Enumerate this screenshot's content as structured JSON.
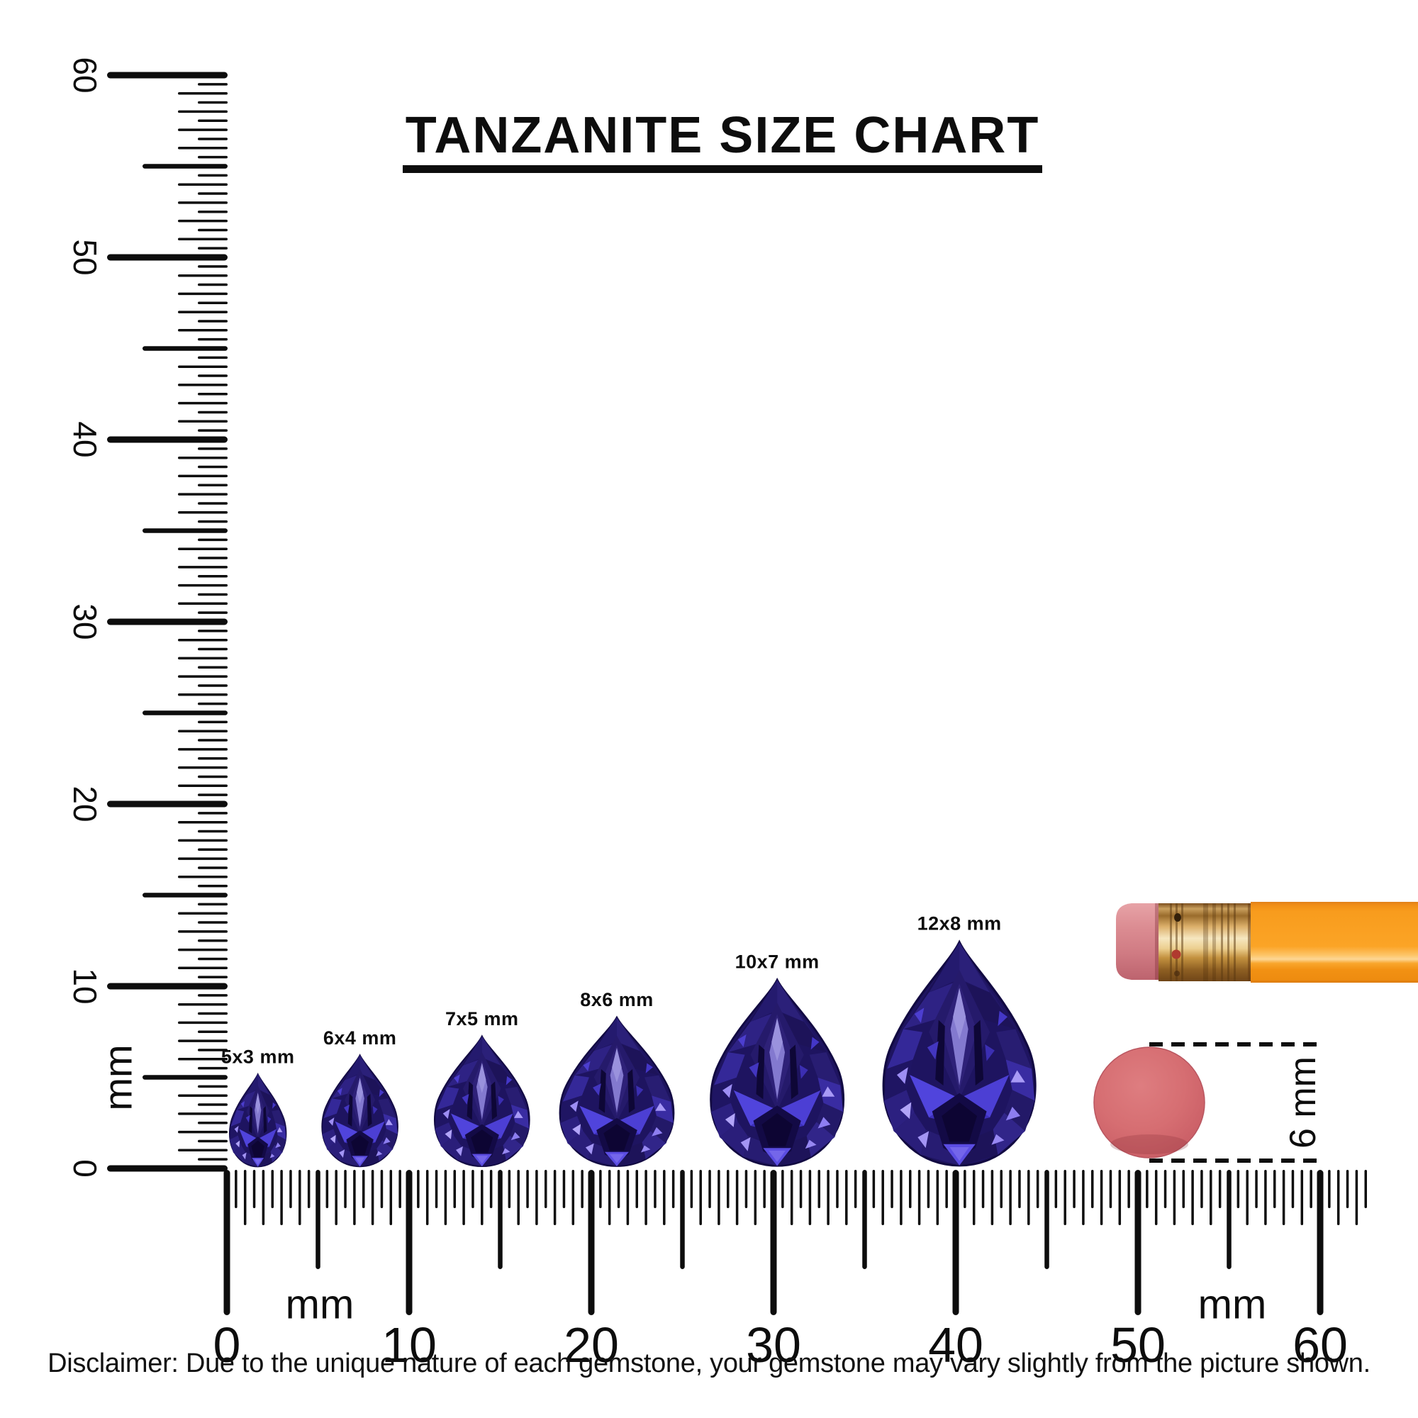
{
  "title": "TANZANITE SIZE CHART",
  "disclaimer": "Disclaimer: Due to the unique nature of each gemstone, your gemstone may vary slightly from the picture shown.",
  "rulers": {
    "vertical": {
      "unit_label": "mm",
      "numbers": [
        "0",
        "10",
        "20",
        "30",
        "40",
        "50",
        "60"
      ],
      "max_mm": 60,
      "tick_step_mm": 0.5
    },
    "horizontal": {
      "unit_labels": [
        "mm",
        "mm"
      ],
      "numbers": [
        "0",
        "10",
        "20",
        "30",
        "40",
        "50",
        "60"
      ],
      "max_mm": 62.5,
      "numbered_max_mm": 60,
      "tick_step_mm": 0.5
    }
  },
  "gems": [
    {
      "label": "5x3 mm",
      "length_mm": 5,
      "width_mm": 3,
      "center_mm": 1.7
    },
    {
      "label": "6x4 mm",
      "length_mm": 6,
      "width_mm": 4,
      "center_mm": 7.3
    },
    {
      "label": "7x5 mm",
      "length_mm": 7,
      "width_mm": 5,
      "center_mm": 14.0
    },
    {
      "label": "8x6 mm",
      "length_mm": 8,
      "width_mm": 6,
      "center_mm": 21.4
    },
    {
      "label": "10x7 mm",
      "length_mm": 10,
      "width_mm": 7,
      "center_mm": 30.2
    },
    {
      "label": "12x8 mm",
      "length_mm": 12,
      "width_mm": 8,
      "center_mm": 40.2
    }
  ],
  "eraser_reference": {
    "label": "6 mm",
    "diameter_mm": 6,
    "center_mm": 50.6
  },
  "colors": {
    "ink": "#0d0d0d",
    "gem_base": "#1e1460",
    "gem_bright": "#5044dc",
    "gem_lavender": "#9d8ef4",
    "pencil_body": "#f9a01d",
    "pencil_eraser_pink": "#d8858b",
    "ferrule_gold": "#e8c183",
    "round_eraser_red": "#d46b70"
  }
}
